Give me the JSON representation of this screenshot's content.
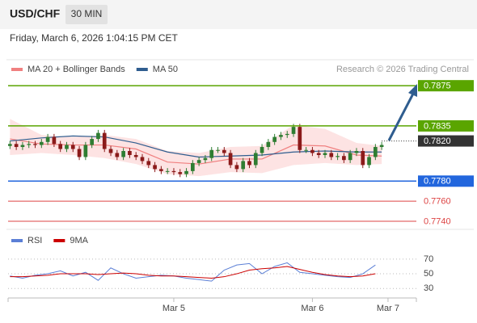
{
  "header": {
    "symbol": "USD/CHF",
    "interval": "30 MIN",
    "datetime": "Friday, March 6, 2026 1:04:15 PM CET"
  },
  "chart_data": [
    {
      "type": "candlestick",
      "credit": "Research © 2026 Trading Central",
      "up_color": "#2e7d32",
      "down_color": "#8b1a1a",
      "xlim": [
        -0.3,
        64.5
      ],
      "ylim": [
        0.7732,
        0.7888
      ],
      "open": [
        0.7815,
        0.7817,
        0.7814,
        0.7816,
        0.7817,
        0.7816,
        0.7819,
        0.7824,
        0.7817,
        0.7812,
        0.7816,
        0.7812,
        0.7804,
        0.7816,
        0.7822,
        0.7828,
        0.7812,
        0.7808,
        0.7804,
        0.781,
        0.7806,
        0.7804,
        0.78,
        0.7796,
        0.7792,
        0.779,
        0.779,
        0.7789,
        0.7787,
        0.779,
        0.7798,
        0.7801,
        0.7803,
        0.7811,
        0.7811,
        0.7808,
        0.7796,
        0.7792,
        0.78,
        0.7796,
        0.7808,
        0.7814,
        0.7819,
        0.7824,
        0.7826,
        0.7827,
        0.7834,
        0.7811,
        0.7811,
        0.7808,
        0.7806,
        0.7808,
        0.7804,
        0.7805,
        0.7801,
        0.7808,
        0.781,
        0.7796,
        0.7804,
        0.7814
      ],
      "high": [
        0.782,
        0.782,
        0.7819,
        0.782,
        0.782,
        0.7822,
        0.7827,
        0.7827,
        0.782,
        0.7819,
        0.7819,
        0.7815,
        0.7819,
        0.7825,
        0.7831,
        0.7831,
        0.7815,
        0.7811,
        0.7813,
        0.7813,
        0.7809,
        0.7807,
        0.7803,
        0.7799,
        0.7795,
        0.7793,
        0.7793,
        0.7792,
        0.7793,
        0.7801,
        0.7804,
        0.7806,
        0.7814,
        0.7814,
        0.7814,
        0.7811,
        0.7799,
        0.7803,
        0.7803,
        0.7811,
        0.7817,
        0.7822,
        0.7827,
        0.7829,
        0.783,
        0.7837,
        0.7837,
        0.7814,
        0.7814,
        0.7811,
        0.7811,
        0.7811,
        0.7808,
        0.7808,
        0.7811,
        0.7813,
        0.7813,
        0.7807,
        0.7817,
        0.7819
      ],
      "low": [
        0.7812,
        0.7811,
        0.7811,
        0.7813,
        0.7813,
        0.7813,
        0.7816,
        0.7814,
        0.7809,
        0.7809,
        0.7809,
        0.7801,
        0.7801,
        0.7813,
        0.7819,
        0.7809,
        0.7805,
        0.7801,
        0.7801,
        0.7803,
        0.7801,
        0.7797,
        0.7793,
        0.7789,
        0.7787,
        0.7787,
        0.7786,
        0.7784,
        0.7784,
        0.7787,
        0.7795,
        0.7798,
        0.78,
        0.7808,
        0.7805,
        0.7793,
        0.7789,
        0.7789,
        0.7793,
        0.7793,
        0.7805,
        0.7811,
        0.7816,
        0.7821,
        0.7823,
        0.7824,
        0.7808,
        0.7808,
        0.7805,
        0.7803,
        0.7803,
        0.7801,
        0.7801,
        0.7798,
        0.7798,
        0.7805,
        0.7793,
        0.7793,
        0.7801,
        0.7811
      ],
      "close": [
        0.7817,
        0.7814,
        0.7816,
        0.7817,
        0.7816,
        0.7819,
        0.7824,
        0.7817,
        0.7812,
        0.7816,
        0.7812,
        0.7804,
        0.7816,
        0.7822,
        0.7828,
        0.7812,
        0.7808,
        0.7804,
        0.781,
        0.7806,
        0.7804,
        0.78,
        0.7796,
        0.7792,
        0.779,
        0.779,
        0.7789,
        0.7787,
        0.779,
        0.7798,
        0.7801,
        0.7803,
        0.7811,
        0.7811,
        0.7808,
        0.7796,
        0.7792,
        0.78,
        0.7796,
        0.7808,
        0.7814,
        0.7819,
        0.7824,
        0.7826,
        0.7827,
        0.7834,
        0.7811,
        0.7811,
        0.7808,
        0.7806,
        0.7808,
        0.7804,
        0.7805,
        0.7801,
        0.7808,
        0.781,
        0.7796,
        0.7804,
        0.7814,
        0.7816
      ],
      "levels": [
        {
          "value": 0.7875,
          "label": "0.7875",
          "color": "#5aa500",
          "box": true,
          "dotted": false
        },
        {
          "value": 0.7835,
          "label": "0.7835",
          "color": "#5aa500",
          "box": true,
          "dotted": false
        },
        {
          "value": 0.782,
          "label": "0.7820",
          "color": "#333333",
          "box": true,
          "dotted": true
        },
        {
          "value": 0.778,
          "label": "0.7780",
          "color": "#2266dd",
          "box": true,
          "dotted": false
        },
        {
          "value": 0.776,
          "label": "0.7760",
          "color": "#dd4444",
          "box": false,
          "dotted": false
        },
        {
          "value": 0.774,
          "label": "0.7740",
          "color": "#dd4444",
          "box": false,
          "dotted": false
        }
      ],
      "indicators": {
        "x": [
          0,
          5,
          10,
          15,
          20,
          25,
          30,
          35,
          40,
          45,
          50,
          55,
          59
        ],
        "series": [
          {
            "name": "MA 20 + Bollinger Bands",
            "color": "#f08080",
            "band_color": "#fde3e3",
            "values": [
              0.7822,
              0.7817,
              0.7816,
              0.7816,
              0.7812,
              0.7799,
              0.7797,
              0.7802,
              0.7802,
              0.7816,
              0.7815,
              0.7806,
              0.7805
            ],
            "upper": [
              0.7842,
              0.7826,
              0.7824,
              0.7826,
              0.7822,
              0.781,
              0.7808,
              0.7814,
              0.7815,
              0.7836,
              0.7832,
              0.7818,
              0.7815
            ],
            "lower": [
              0.7806,
              0.7808,
              0.7806,
              0.7803,
              0.7797,
              0.7787,
              0.7785,
              0.7789,
              0.7788,
              0.7796,
              0.7798,
              0.7796,
              0.7797
            ]
          },
          {
            "name": "MA 50",
            "color": "#2f5d8f",
            "values": [
              0.782,
              0.7823,
              0.7825,
              0.7824,
              0.7818,
              0.7809,
              0.7804,
              0.7805,
              0.7806,
              0.7809,
              0.781,
              0.7809,
              0.7809
            ]
          }
        ]
      }
    },
    {
      "type": "line",
      "xlim": [
        -0.3,
        64.5
      ],
      "ylim": [
        17,
        82
      ],
      "yticks": [
        30,
        50,
        70
      ],
      "xticks": [
        {
          "value": 26,
          "label": "Mar 5"
        },
        {
          "value": 48,
          "label": "Mar 6"
        },
        {
          "value": 60,
          "label": "Mar 7"
        }
      ],
      "x": [
        0,
        2,
        4,
        6,
        8,
        10,
        12,
        14,
        16,
        18,
        20,
        22,
        24,
        26,
        28,
        30,
        32,
        34,
        36,
        38,
        40,
        42,
        44,
        46,
        48,
        50,
        52,
        54,
        56,
        58
      ],
      "series": [
        {
          "name": "RSI",
          "color": "#5b7fd6",
          "values": [
            47,
            44,
            48,
            50,
            54,
            47,
            52,
            41,
            58,
            50,
            44,
            46,
            48,
            47,
            44,
            42,
            40,
            55,
            62,
            64,
            50,
            60,
            65,
            52,
            50,
            48,
            46,
            45,
            50,
            62
          ]
        },
        {
          "name": "9MA",
          "color": "#cc0000",
          "values": [
            46,
            46,
            47,
            48,
            50,
            50,
            50,
            49,
            50,
            51,
            50,
            48,
            47,
            47,
            46,
            45,
            44,
            46,
            50,
            55,
            57,
            58,
            60,
            56,
            52,
            49,
            47,
            46,
            47,
            50
          ]
        }
      ]
    }
  ]
}
